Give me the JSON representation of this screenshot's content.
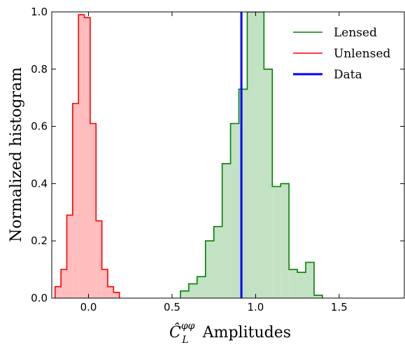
{
  "chart_data": {
    "type": "histogram",
    "xlabel_symbol": "Ĉ",
    "xlabel_subscript": "L",
    "xlabel_superscript": "φφ",
    "xlabel_text": "Amplitudes",
    "ylabel": "Normalized histogram",
    "xlim": [
      -0.22,
      1.89
    ],
    "ylim": [
      0,
      1.0
    ],
    "xticks": [
      0.0,
      0.5,
      1.0,
      1.5
    ],
    "xtick_labels": [
      "0.0",
      "0.5",
      "1.0",
      "1.5"
    ],
    "yticks": [
      0.0,
      0.2,
      0.4,
      0.6,
      0.8,
      1.0
    ],
    "ytick_labels": [
      "0.0",
      "0.2",
      "0.4",
      "0.6",
      "0.8",
      "1.0"
    ],
    "legend_position": "top-right",
    "series": [
      {
        "name": "Lensed",
        "color": "#008000",
        "fill": "#c3e1c3",
        "edges": [
          0.55,
          0.6,
          0.65,
          0.7,
          0.75,
          0.8,
          0.85,
          0.9,
          0.95,
          1.0,
          1.05,
          1.1,
          1.15,
          1.2,
          1.25,
          1.3,
          1.35,
          1.4
        ],
        "values": [
          0.025,
          0.05,
          0.075,
          0.2,
          0.25,
          0.47,
          0.61,
          0.73,
          1.0,
          1.0,
          0.8,
          0.39,
          0.4,
          0.1,
          0.09,
          0.125,
          0.01
        ]
      },
      {
        "name": "Unlensed",
        "color": "#ff0000",
        "fill": "#ffbdbd",
        "edges": [
          -0.2,
          -0.165,
          -0.13,
          -0.095,
          -0.06,
          -0.025,
          0.01,
          0.045,
          0.08,
          0.115,
          0.15,
          0.185
        ],
        "values": [
          0.04,
          0.1,
          0.29,
          0.68,
          0.99,
          0.98,
          0.61,
          0.27,
          0.1,
          0.04,
          0.02
        ]
      },
      {
        "name": "Data",
        "color": "#0000ff",
        "x": 0.915
      }
    ]
  }
}
